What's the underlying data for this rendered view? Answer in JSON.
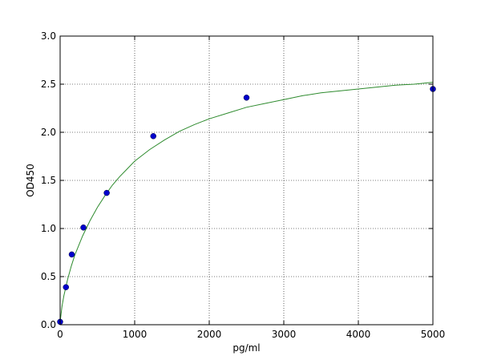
{
  "chart_data": {
    "type": "scatter",
    "title": "",
    "xlabel": "pg/ml",
    "ylabel": "OD450",
    "xlim": [
      0,
      5000
    ],
    "ylim": [
      0,
      3.0
    ],
    "x_ticks": [
      0,
      1000,
      2000,
      3000,
      4000,
      5000
    ],
    "x_tick_labels": [
      "0",
      "1000",
      "2000",
      "3000",
      "4000",
      "5000"
    ],
    "y_ticks": [
      0,
      0.5,
      1.0,
      1.5,
      2.0,
      2.5,
      3.0
    ],
    "y_tick_labels": [
      "0.0",
      "0.5",
      "1.0",
      "1.5",
      "2.0",
      "2.5",
      "3.0"
    ],
    "grid": true,
    "grid_style": "dotted",
    "series": [
      {
        "kind": "points",
        "color": "#0000cc",
        "x": [
          0,
          78,
          156,
          312,
          625,
          1250,
          2500,
          5000
        ],
        "y": [
          0.03,
          0.39,
          0.73,
          1.01,
          1.37,
          1.96,
          2.36,
          2.45
        ]
      },
      {
        "kind": "fit-curve",
        "color": "#2e8b2e",
        "x": [
          0,
          25,
          50,
          100,
          150,
          200,
          300,
          400,
          500,
          600,
          700,
          800,
          900,
          1000,
          1200,
          1400,
          1600,
          1800,
          2000,
          2250,
          2500,
          2750,
          3000,
          3250,
          3500,
          3750,
          4000,
          4250,
          4500,
          4750,
          5000
        ],
        "y": [
          0.03,
          0.19,
          0.3,
          0.47,
          0.61,
          0.73,
          0.92,
          1.08,
          1.22,
          1.34,
          1.45,
          1.54,
          1.62,
          1.7,
          1.82,
          1.92,
          2.01,
          2.08,
          2.14,
          2.2,
          2.26,
          2.3,
          2.34,
          2.38,
          2.41,
          2.43,
          2.45,
          2.47,
          2.49,
          2.5,
          2.52
        ]
      }
    ]
  }
}
